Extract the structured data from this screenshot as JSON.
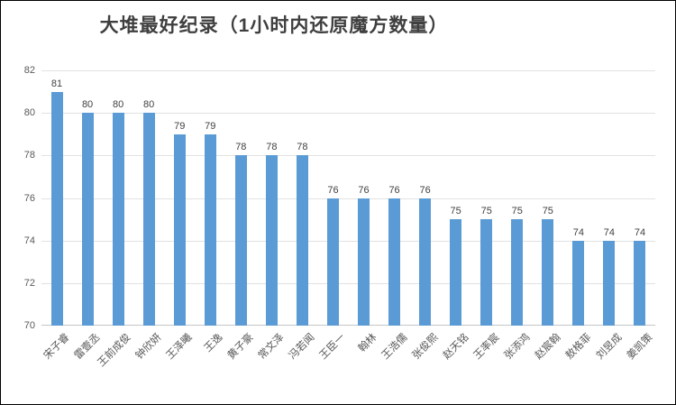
{
  "chart_data": {
    "type": "bar",
    "title": "大堆最好纪录（1小时内还原魔方数量）",
    "categories": [
      "宋子睿",
      "雷壹丞",
      "王前成俊",
      "钟欣妍",
      "王泽曦",
      "王逸",
      "黄子豪",
      "常文泽",
      "冯若闻",
      "王臣一",
      "翰林",
      "王浩儒",
      "张俊熙",
      "赵天铭",
      "王率宸",
      "张添鸿",
      "赵宸翰",
      "敖格菲",
      "刘昱成",
      "姜凯策"
    ],
    "values": [
      81,
      80,
      80,
      80,
      79,
      79,
      78,
      78,
      78,
      76,
      76,
      76,
      76,
      75,
      75,
      75,
      75,
      74,
      74,
      74
    ],
    "xlabel": "",
    "ylabel": "",
    "ylim": [
      70,
      82
    ],
    "yticks": [
      70,
      72,
      74,
      76,
      78,
      80,
      82
    ],
    "grid": true,
    "data_labels": true,
    "legend": "none",
    "bar_color": "#5b9bd5",
    "gridline_color": "#e2e2e2",
    "axis_line_color": "#c6c6c6",
    "label_color": "#595959",
    "value_label_color": "#404040",
    "title_color": "#3f3f3f"
  }
}
